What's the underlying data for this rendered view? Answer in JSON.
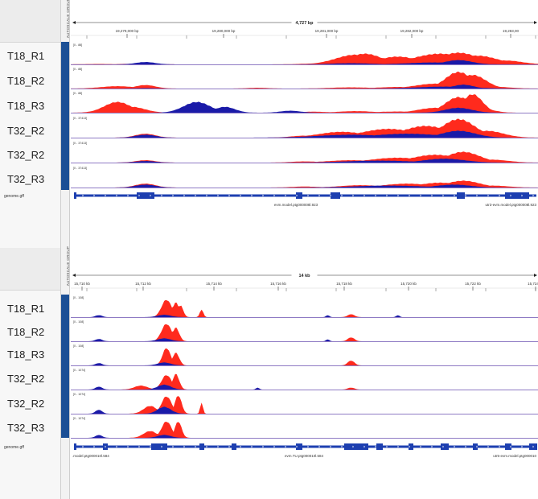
{
  "group_label": "AUTOSCALE GROUP",
  "colors": {
    "forward": "#ff2a1d",
    "reverse": "#1a1aa8",
    "gene": "#1d3fb0",
    "baseline": "#6a4fb0",
    "bluebar": "#1b4f95"
  },
  "panels": [
    {
      "span_label": "4,727 bp",
      "ticks": [
        {
          "label": "19,279,000 bp"
        },
        {
          "label": "19,280,000 bp"
        },
        {
          "label": "19,281,000 bp"
        },
        {
          "label": "19,282,000 bp"
        },
        {
          "label": "19,283,00"
        }
      ],
      "tracks": [
        {
          "name": "T18_R1",
          "range": "[0 - 88]",
          "forward_peaks": [
            [
              0.06,
              0.05,
              0.02
            ],
            [
              0.14,
              0.05,
              0.03
            ],
            [
              0.54,
              0.06,
              0.05
            ],
            [
              0.61,
              0.06,
              0.5
            ],
            [
              0.63,
              0.05,
              0.55
            ],
            [
              0.7,
              0.06,
              0.4
            ],
            [
              0.79,
              0.08,
              0.55
            ],
            [
              0.83,
              0.06,
              0.6
            ],
            [
              0.87,
              0.06,
              0.45
            ],
            [
              0.93,
              0.05,
              0.2
            ]
          ],
          "reverse_peaks": [
            [
              0.16,
              0.03,
              0.12
            ],
            [
              0.6,
              0.06,
              0.06
            ],
            [
              0.78,
              0.08,
              0.1
            ],
            [
              0.83,
              0.04,
              0.22
            ]
          ]
        },
        {
          "name": "T18_R2",
          "range": "[0 - 88]",
          "forward_peaks": [
            [
              0.1,
              0.05,
              0.12
            ],
            [
              0.16,
              0.03,
              0.18
            ],
            [
              0.4,
              0.03,
              0.04
            ],
            [
              0.6,
              0.06,
              0.06
            ],
            [
              0.7,
              0.06,
              0.08
            ],
            [
              0.78,
              0.06,
              0.25
            ],
            [
              0.83,
              0.04,
              0.85
            ],
            [
              0.86,
              0.04,
              0.7
            ],
            [
              0.9,
              0.05,
              0.1
            ]
          ],
          "reverse_peaks": [
            [
              0.16,
              0.03,
              0.02
            ],
            [
              0.8,
              0.08,
              0.1
            ],
            [
              0.84,
              0.03,
              0.2
            ]
          ]
        },
        {
          "name": "T18_R3",
          "range": "[0 - 88]",
          "forward_peaks": [
            [
              0.1,
              0.04,
              0.55
            ],
            [
              0.13,
              0.04,
              0.3
            ],
            [
              0.52,
              0.04,
              0.05
            ],
            [
              0.61,
              0.05,
              0.08
            ],
            [
              0.7,
              0.06,
              0.06
            ],
            [
              0.78,
              0.05,
              0.25
            ],
            [
              0.83,
              0.04,
              0.8
            ],
            [
              0.86,
              0.03,
              0.95
            ],
            [
              0.89,
              0.03,
              0.15
            ]
          ],
          "reverse_peaks": [
            [
              0.27,
              0.04,
              0.55
            ],
            [
              0.33,
              0.03,
              0.3
            ],
            [
              0.47,
              0.03,
              0.1
            ],
            [
              0.83,
              0.04,
              0.25
            ]
          ]
        },
        {
          "name": "T32_R2",
          "range": "[0 - 37413]",
          "forward_peaks": [
            [
              0.16,
              0.03,
              0.2
            ],
            [
              0.5,
              0.04,
              0.1
            ],
            [
              0.58,
              0.07,
              0.3
            ],
            [
              0.68,
              0.08,
              0.45
            ],
            [
              0.76,
              0.07,
              0.6
            ],
            [
              0.83,
              0.05,
              0.95
            ],
            [
              0.89,
              0.05,
              0.35
            ]
          ],
          "reverse_peaks": [
            [
              0.16,
              0.03,
              0.15
            ],
            [
              0.6,
              0.1,
              0.15
            ],
            [
              0.72,
              0.1,
              0.2
            ],
            [
              0.83,
              0.05,
              0.35
            ]
          ]
        },
        {
          "name": "T32_R2",
          "range": "[0 - 37413]",
          "forward_peaks": [
            [
              0.16,
              0.03,
              0.12
            ],
            [
              0.5,
              0.04,
              0.06
            ],
            [
              0.6,
              0.07,
              0.12
            ],
            [
              0.7,
              0.08,
              0.25
            ],
            [
              0.78,
              0.07,
              0.4
            ],
            [
              0.84,
              0.05,
              0.55
            ],
            [
              0.9,
              0.05,
              0.15
            ]
          ],
          "reverse_peaks": [
            [
              0.16,
              0.03,
              0.08
            ],
            [
              0.66,
              0.1,
              0.1
            ],
            [
              0.8,
              0.06,
              0.2
            ]
          ]
        },
        {
          "name": "T32_R3",
          "range": "[0 - 37413]",
          "forward_peaks": [
            [
              0.16,
              0.03,
              0.2
            ],
            [
              0.5,
              0.04,
              0.05
            ],
            [
              0.62,
              0.06,
              0.12
            ],
            [
              0.72,
              0.07,
              0.2
            ],
            [
              0.79,
              0.06,
              0.25
            ],
            [
              0.84,
              0.05,
              0.35
            ],
            [
              0.9,
              0.05,
              0.1
            ]
          ],
          "reverse_peaks": [
            [
              0.16,
              0.03,
              0.15
            ],
            [
              0.68,
              0.1,
              0.1
            ],
            [
              0.82,
              0.05,
              0.15
            ]
          ]
        }
      ],
      "gff": {
        "name": "genome.gff",
        "labels": [
          {
            "text": "evm.model.ptg000008l.923"
          },
          {
            "text": "utr3-evm.model.ptg000008l.923"
          }
        ]
      }
    },
    {
      "span_label": "14 kb",
      "ticks": [
        {
          "label": "15,710 kb"
        },
        {
          "label": "15,712 kb"
        },
        {
          "label": "15,714 kb"
        },
        {
          "label": "15,716 kb"
        },
        {
          "label": "15,718 kb"
        },
        {
          "label": "15,720 kb"
        },
        {
          "label": "15,722 kb"
        },
        {
          "label": "15,724 kb"
        }
      ],
      "tracks": [
        {
          "name": "T18_R1",
          "range": "[0 - 108]",
          "forward_peaks": [
            [
              0.205,
              0.015,
              0.9
            ],
            [
              0.225,
              0.01,
              0.75
            ],
            [
              0.235,
              0.008,
              0.6
            ],
            [
              0.28,
              0.005,
              0.4
            ],
            [
              0.6,
              0.01,
              0.15
            ]
          ],
          "reverse_peaks": [
            [
              0.06,
              0.01,
              0.1
            ],
            [
              0.2,
              0.02,
              0.12
            ],
            [
              0.55,
              0.005,
              0.1
            ],
            [
              0.7,
              0.005,
              0.1
            ]
          ]
        },
        {
          "name": "T18_R2",
          "range": "[0 - 108]",
          "forward_peaks": [
            [
              0.205,
              0.015,
              0.9
            ],
            [
              0.225,
              0.01,
              0.7
            ],
            [
              0.6,
              0.01,
              0.2
            ]
          ],
          "reverse_peaks": [
            [
              0.06,
              0.01,
              0.12
            ],
            [
              0.2,
              0.02,
              0.15
            ],
            [
              0.55,
              0.005,
              0.1
            ]
          ]
        },
        {
          "name": "T18_R3",
          "range": "[0 - 108]",
          "forward_peaks": [
            [
              0.205,
              0.012,
              0.9
            ],
            [
              0.225,
              0.01,
              0.65
            ],
            [
              0.6,
              0.01,
              0.25
            ]
          ],
          "reverse_peaks": [
            [
              0.06,
              0.01,
              0.12
            ],
            [
              0.2,
              0.02,
              0.15
            ]
          ]
        },
        {
          "name": "T32_R2",
          "range": "[0 - 1074]",
          "forward_peaks": [
            [
              0.15,
              0.02,
              0.2
            ],
            [
              0.205,
              0.015,
              0.75
            ],
            [
              0.225,
              0.01,
              0.8
            ],
            [
              0.6,
              0.01,
              0.1
            ]
          ],
          "reverse_peaks": [
            [
              0.06,
              0.01,
              0.15
            ],
            [
              0.2,
              0.02,
              0.25
            ],
            [
              0.4,
              0.005,
              0.1
            ]
          ]
        },
        {
          "name": "T32_R2",
          "range": "[0 - 1074]",
          "forward_peaks": [
            [
              0.17,
              0.02,
              0.4
            ],
            [
              0.205,
              0.015,
              0.9
            ],
            [
              0.23,
              0.01,
              0.95
            ],
            [
              0.28,
              0.004,
              0.6
            ]
          ],
          "reverse_peaks": [
            [
              0.06,
              0.01,
              0.2
            ],
            [
              0.2,
              0.02,
              0.35
            ]
          ]
        },
        {
          "name": "T32_R3",
          "range": "[0 - 1074]",
          "forward_peaks": [
            [
              0.17,
              0.02,
              0.35
            ],
            [
              0.205,
              0.015,
              0.85
            ],
            [
              0.23,
              0.01,
              0.85
            ]
          ],
          "reverse_peaks": [
            [
              0.06,
              0.01,
              0.15
            ],
            [
              0.2,
              0.02,
              0.15
            ]
          ]
        }
      ],
      "gff": {
        "name": "genome.gff",
        "labels": [
          {
            "text": ".model.ptg000010l.584"
          },
          {
            "text": "evm.TU.ptg000010l.584"
          },
          {
            "text": "utr5-evm.model.ptg000010"
          }
        ]
      }
    }
  ]
}
